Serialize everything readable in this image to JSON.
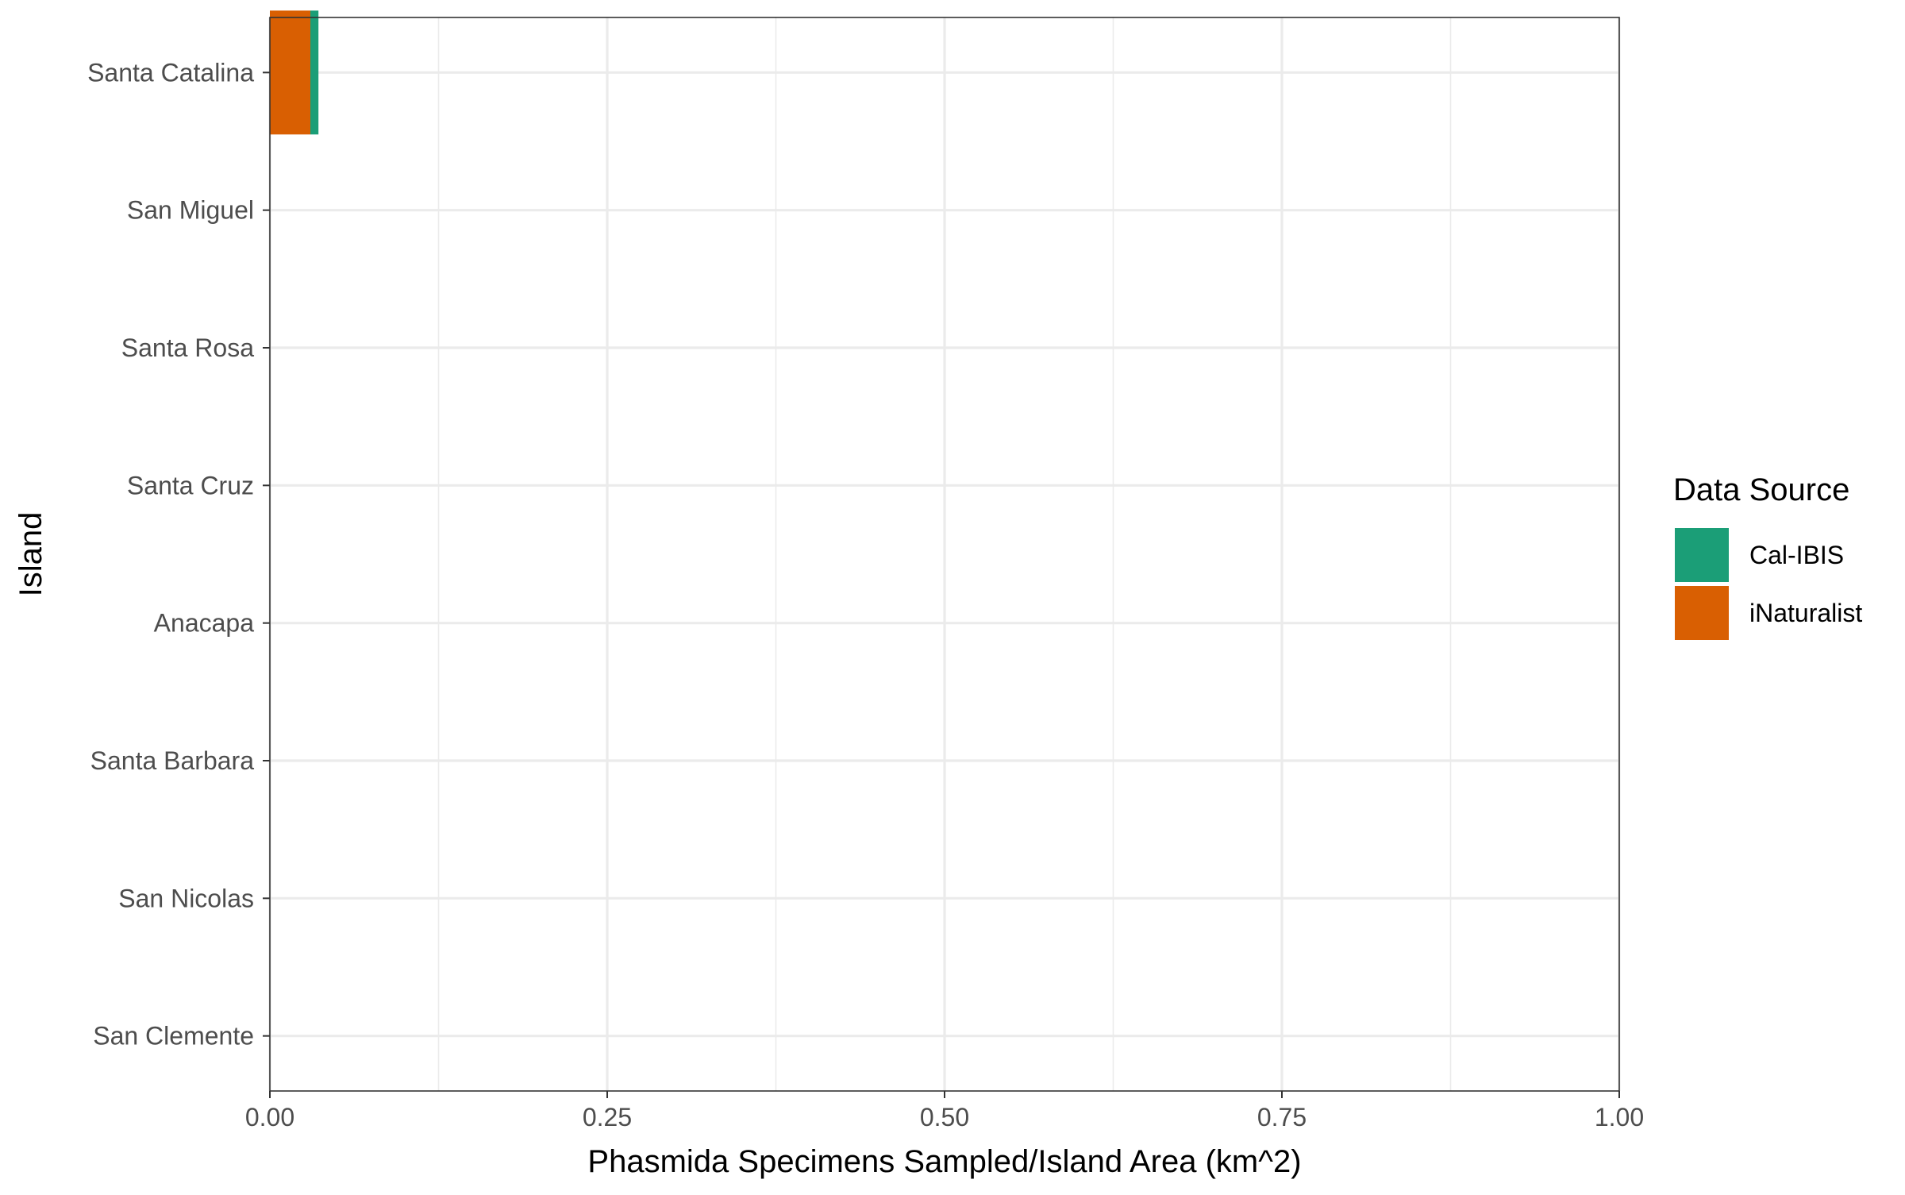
{
  "chart_data": {
    "type": "bar",
    "orientation": "horizontal",
    "stacked": true,
    "categories": [
      "Santa Catalina",
      "San Miguel",
      "Santa Rosa",
      "Santa Cruz",
      "Anacapa",
      "Santa Barbara",
      "San Nicolas",
      "San Clemente"
    ],
    "series": [
      {
        "name": "Cal-IBIS",
        "color": "#1B9E77",
        "values": [
          0.006,
          0,
          0,
          0,
          0,
          0,
          0,
          0
        ]
      },
      {
        "name": "iNaturalist",
        "color": "#D95F02",
        "values": [
          0.03,
          0,
          0,
          0,
          0,
          0,
          0,
          0
        ]
      }
    ],
    "xlabel": "Phasmida Specimens Sampled/Island Area (km^2)",
    "ylabel": "Island",
    "xlim": [
      0,
      1
    ],
    "xticks": [
      "0.00",
      "0.25",
      "0.50",
      "0.75",
      "1.00"
    ],
    "grid": true,
    "legend": {
      "title": "Data Source",
      "position": "right"
    }
  }
}
